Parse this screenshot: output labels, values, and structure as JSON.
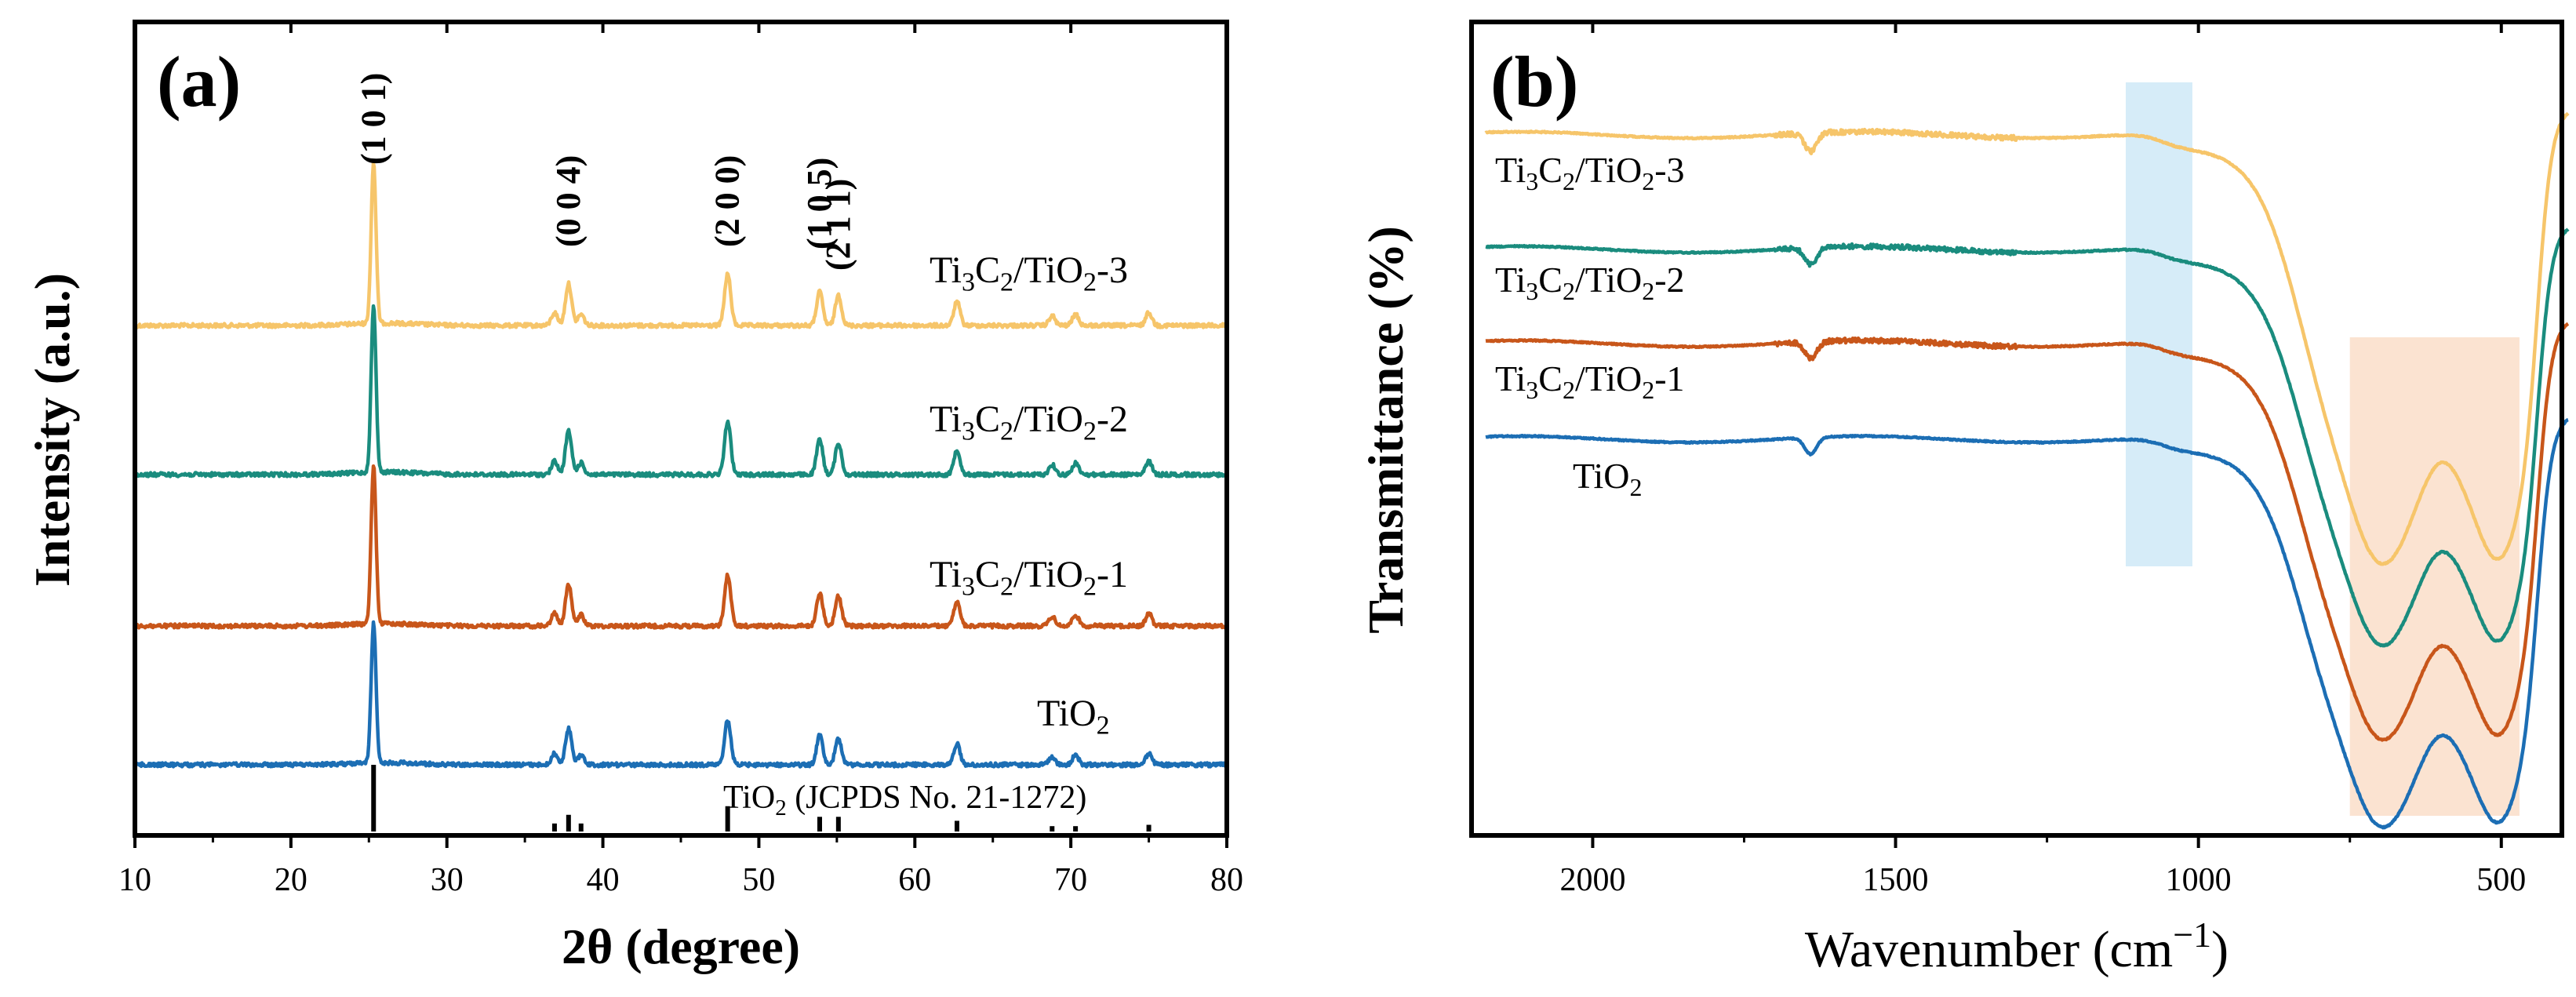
{
  "chart_data": [
    {
      "type": "line",
      "panel_label": "(a)",
      "xlabel": "2θ (degree)",
      "ylabel": "Intensity (a.u.)",
      "xlim": [
        10,
        80
      ],
      "xticks": [
        "10",
        "20",
        "30",
        "40",
        "50",
        "60",
        "70",
        "80"
      ],
      "colors": {
        "s3": "#F6C56A",
        "s2": "#1A8C7E",
        "s1": "#C8561A",
        "s0": "#1C6EB4",
        "ref": "#000000"
      },
      "series": [
        {
          "key": "s3",
          "name_parts": [
            "Ti",
            "3",
            "C",
            "2",
            "/TiO",
            "2",
            "-3"
          ],
          "baseline": 0.0
        },
        {
          "key": "s2",
          "name_parts": [
            "Ti",
            "3",
            "C",
            "2",
            "/TiO",
            "2",
            "-2"
          ],
          "baseline": 0.0
        },
        {
          "key": "s1",
          "name_parts": [
            "Ti",
            "3",
            "C",
            "2",
            "/TiO",
            "2",
            "-1"
          ],
          "baseline": 0.0
        },
        {
          "key": "s0",
          "name_parts": [
            "TiO",
            "2"
          ],
          "baseline": 0.0
        }
      ],
      "peaks": [
        {
          "pos": 25.3,
          "height": 1.0
        },
        {
          "pos": 36.9,
          "height": 0.08
        },
        {
          "pos": 37.8,
          "height": 0.26
        },
        {
          "pos": 38.6,
          "height": 0.07
        },
        {
          "pos": 48.0,
          "height": 0.32
        },
        {
          "pos": 53.9,
          "height": 0.21
        },
        {
          "pos": 55.1,
          "height": 0.19
        },
        {
          "pos": 62.7,
          "height": 0.15
        },
        {
          "pos": 68.8,
          "height": 0.06
        },
        {
          "pos": 70.3,
          "height": 0.07
        },
        {
          "pos": 75.0,
          "height": 0.08
        }
      ],
      "hkl_labels": [
        {
          "text": "(1 0 1)",
          "pos": 25.3
        },
        {
          "text": "(0 0 4)",
          "pos": 37.8
        },
        {
          "text": "(2 0 0)",
          "pos": 48.0
        },
        {
          "text": "(1 0 5)",
          "pos": 53.9
        },
        {
          "text": "(2 1 1)",
          "pos": 55.1
        }
      ],
      "reference": {
        "label_parts": [
          "TiO",
          "2",
          " (JCPDS No. 21-1272)"
        ],
        "lines": [
          {
            "pos": 25.3,
            "height": 1.0
          },
          {
            "pos": 36.9,
            "height": 0.12
          },
          {
            "pos": 37.8,
            "height": 0.25
          },
          {
            "pos": 38.6,
            "height": 0.12
          },
          {
            "pos": 48.0,
            "height": 0.38
          },
          {
            "pos": 53.9,
            "height": 0.22
          },
          {
            "pos": 55.1,
            "height": 0.22
          },
          {
            "pos": 62.7,
            "height": 0.16
          },
          {
            "pos": 68.8,
            "height": 0.08
          },
          {
            "pos": 70.3,
            "height": 0.08
          },
          {
            "pos": 75.0,
            "height": 0.1
          }
        ]
      }
    },
    {
      "type": "line",
      "panel_label": "(b)",
      "xlabel_parts": [
        "Wavenumber (cm",
        "−1",
        ")"
      ],
      "ylabel": "Transmittance (%)",
      "xlim": [
        2200,
        400
      ],
      "xticks": [
        "2000",
        "1500",
        "1000",
        "500"
      ],
      "highlight_bands": [
        {
          "from": 1120,
          "to": 1010,
          "color": "#D6ECF8"
        },
        {
          "from": 750,
          "to": 470,
          "color": "#FBE3D1"
        }
      ],
      "colors": {
        "s3": "#F6C56A",
        "s2": "#1A8C7E",
        "s1": "#C8561A",
        "s0": "#1C6EB4"
      },
      "series": [
        {
          "key": "s3",
          "name_parts": [
            "Ti",
            "3",
            "C",
            "2",
            "/TiO",
            "2",
            "-3"
          ]
        },
        {
          "key": "s2",
          "name_parts": [
            "Ti",
            "3",
            "C",
            "2",
            "/TiO",
            "2",
            "-2"
          ]
        },
        {
          "key": "s1",
          "name_parts": [
            "Ti",
            "3",
            "C",
            "2",
            "/TiO",
            "2",
            "-1"
          ]
        },
        {
          "key": "s0",
          "name_parts": [
            "TiO",
            "2"
          ]
        }
      ],
      "features": {
        "dip_1640": 1640,
        "shoulder_1060": 1060,
        "min_700": 700,
        "min_500": 500
      }
    }
  ]
}
